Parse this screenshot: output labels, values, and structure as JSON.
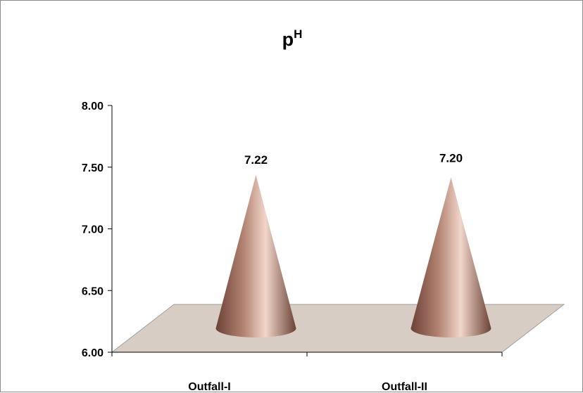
{
  "chart_data": {
    "type": "bar",
    "shape": "cone",
    "title": "p",
    "title_superscript": "H",
    "categories": [
      "Outfall-I",
      "Outfall-II"
    ],
    "values": [
      7.22,
      7.2
    ],
    "value_labels": [
      "7.22",
      "7.20"
    ],
    "ylim": [
      6.0,
      8.0
    ],
    "yticks": [
      "6.00",
      "6.50",
      "7.00",
      "7.50",
      "8.00"
    ],
    "xlabel": "",
    "ylabel": "",
    "grid": false,
    "legend": "none",
    "colors": {
      "cone": "#b48473",
      "cone_light": "#f1d6c9",
      "cone_dark": "#6b4236",
      "floor": "#d8cdc4",
      "axis": "#000000"
    }
  }
}
